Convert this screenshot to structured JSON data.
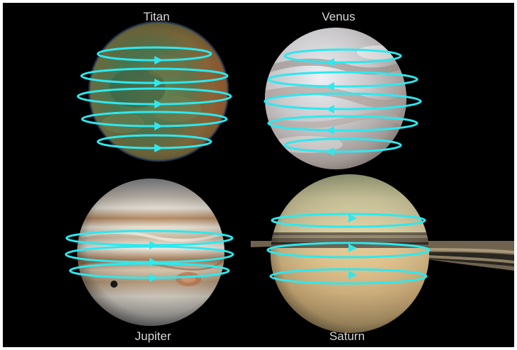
{
  "planets": [
    {
      "name": "Titan",
      "flow": "prograde"
    },
    {
      "name": "Venus",
      "flow": "retrograde"
    },
    {
      "name": "Jupiter",
      "flow": "prograde"
    },
    {
      "name": "Saturn",
      "flow": "prograde"
    }
  ],
  "colors": {
    "background": "#000000",
    "arrow": "#2ee8ef",
    "label": "#d9d9d9"
  },
  "icons": [
    "rotation-arrow-icon"
  ]
}
